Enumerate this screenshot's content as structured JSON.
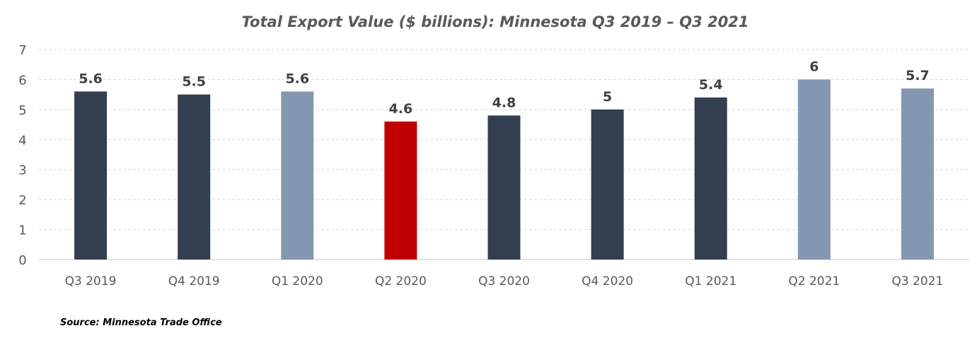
{
  "chart_data": {
    "type": "bar",
    "title": "Total Export Value ($ billions): Minnesota Q3 2019 – Q3 2021",
    "xlabel": "",
    "ylabel": "",
    "categories": [
      "Q3 2019",
      "Q4 2019",
      "Q1 2020",
      "Q2 2020",
      "Q3 2020",
      "Q4 2020",
      "Q1 2021",
      "Q2 2021",
      "Q3 2021"
    ],
    "values": [
      5.6,
      5.5,
      5.6,
      4.6,
      4.8,
      5,
      5.4,
      6,
      5.7
    ],
    "data_labels": [
      "5.6",
      "5.5",
      "5.6",
      "4.6",
      "4.8",
      "5",
      "5.4",
      "6",
      "5.7"
    ],
    "bar_colors": [
      "#333f50",
      "#333f50",
      "#8497b0",
      "#c00000",
      "#333f50",
      "#333f50",
      "#333f50",
      "#8497b0",
      "#8497b0"
    ],
    "ylim": [
      0,
      7
    ],
    "yticks": [
      "0",
      "1",
      "2",
      "3",
      "4",
      "5",
      "6",
      "7"
    ],
    "grid": true,
    "legend": "none"
  },
  "footer": {
    "source": "Source: Minnesota Trade Office"
  }
}
